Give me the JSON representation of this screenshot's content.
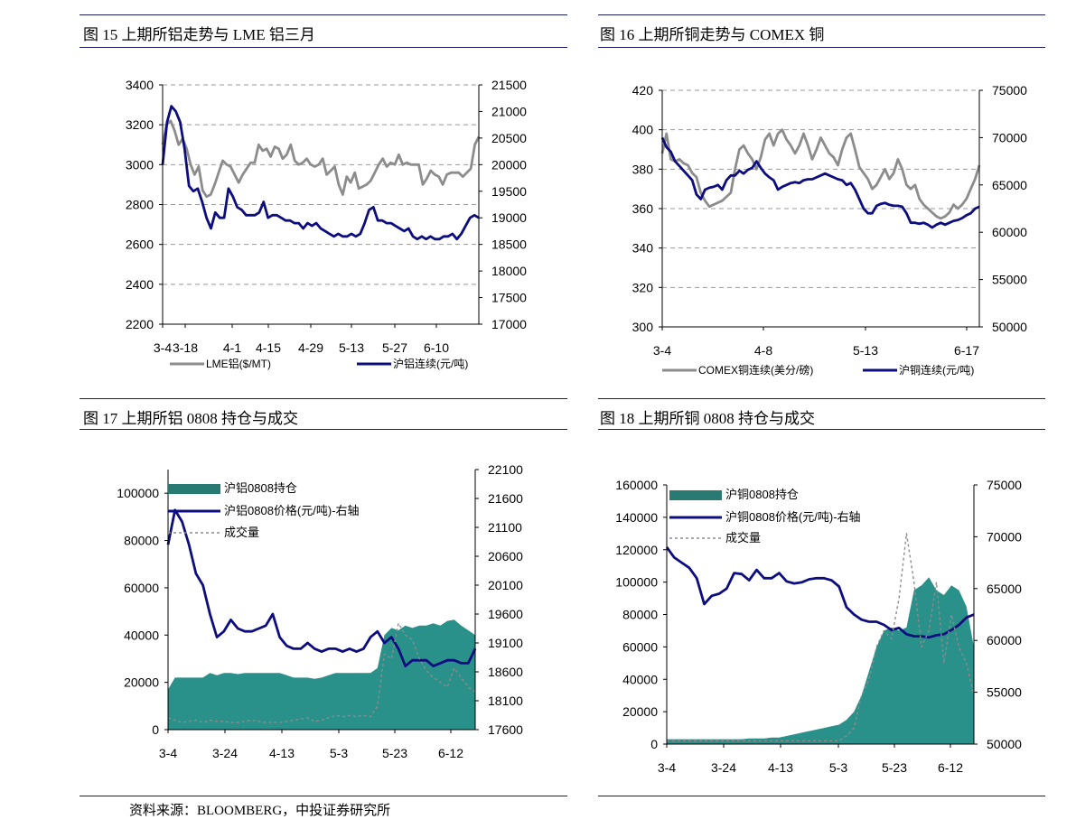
{
  "source_note": "资料来源：BLOOMBERG，中投证券研究所",
  "chart_data": [
    {
      "type": "line",
      "title": "图 15  上期所铝走势与 LME 铝三月",
      "x_ticks": [
        "3-4",
        "3-18",
        "4-1",
        "4-15",
        "4-29",
        "5-13",
        "5-27",
        "6-10"
      ],
      "y_left": {
        "ticks": [
          2200,
          2400,
          2600,
          2800,
          3000,
          3200,
          3400
        ],
        "lim": [
          2200,
          3400
        ]
      },
      "y_right": {
        "ticks": [
          17000,
          17500,
          18000,
          18500,
          19000,
          19500,
          20000,
          20500,
          21000,
          21500
        ],
        "lim": [
          17000,
          21500
        ]
      },
      "grid": true,
      "legend_position": "bottom",
      "series": [
        {
          "name": "LME铝($/MT)",
          "axis": "left",
          "color": "#8c8c8c",
          "values": [
            3100,
            3200,
            3220,
            3170,
            3100,
            3130,
            3080,
            3000,
            2950,
            2990,
            2870,
            2840,
            2850,
            2900,
            2960,
            3020,
            3000,
            2990,
            2950,
            2910,
            2950,
            2980,
            3010,
            3010,
            3100,
            3070,
            3080,
            3040,
            3090,
            3080,
            3030,
            3050,
            3100,
            3020,
            3000,
            3010,
            3030,
            3000,
            2990,
            3000,
            3030,
            2950,
            2970,
            2990,
            2900,
            2850,
            2940,
            2910,
            2960,
            2880,
            2890,
            2900,
            2920,
            2960,
            3000,
            3030,
            2990,
            3010,
            3000,
            3050,
            3000,
            3010,
            3000,
            3000,
            3000,
            2900,
            2930,
            2970,
            2950,
            2940,
            2900,
            2950,
            2960,
            2960,
            2960,
            2940,
            2960,
            2980,
            3100,
            3140
          ]
        },
        {
          "name": "沪铝连续(元/吨)",
          "axis": "right",
          "color": "#0d0d80",
          "values": [
            20000,
            20800,
            21100,
            21000,
            20800,
            20300,
            19600,
            19500,
            19550,
            19300,
            19000,
            18800,
            19100,
            19000,
            19000,
            19550,
            19400,
            19200,
            19150,
            19050,
            19050,
            19050,
            19100,
            19300,
            19000,
            19050,
            19050,
            19000,
            18950,
            18950,
            18900,
            18900,
            18800,
            18900,
            18850,
            18900,
            18800,
            18750,
            18700,
            18650,
            18700,
            18650,
            18650,
            18700,
            18650,
            18700,
            18900,
            19150,
            19200,
            18950,
            18950,
            18900,
            18900,
            18850,
            18800,
            18750,
            18800,
            18650,
            18600,
            18650,
            18600,
            18650,
            18600,
            18600,
            18650,
            18650,
            18700,
            18600,
            18700,
            18850,
            19000,
            19050,
            19000
          ]
        }
      ]
    },
    {
      "type": "line",
      "title": "图 16  上期所铜走势与 COMEX 铜",
      "x_ticks": [
        "3-4",
        "4-8",
        "5-13",
        "6-17"
      ],
      "y_left": {
        "ticks": [
          300,
          320,
          340,
          360,
          380,
          400,
          420
        ],
        "lim": [
          300,
          420
        ]
      },
      "y_right": {
        "ticks": [
          50000,
          55000,
          60000,
          65000,
          70000,
          75000
        ],
        "lim": [
          50000,
          75000
        ]
      },
      "grid": true,
      "legend_position": "bottom",
      "series": [
        {
          "name": "COMEX铜连续(美分/磅)",
          "axis": "left",
          "color": "#8c8c8c",
          "values": [
            388,
            398,
            385,
            384,
            385,
            383,
            382,
            378,
            376,
            368,
            364,
            361,
            362,
            363,
            364,
            366,
            368,
            380,
            390,
            392,
            388,
            385,
            380,
            386,
            395,
            398,
            392,
            398,
            400,
            395,
            392,
            388,
            392,
            398,
            392,
            385,
            390,
            396,
            392,
            388,
            386,
            382,
            390,
            396,
            398,
            390,
            381,
            378,
            375,
            370,
            372,
            376,
            380,
            375,
            378,
            385,
            380,
            372,
            370,
            372,
            365,
            362,
            360,
            358,
            356,
            355,
            356,
            358,
            362,
            360,
            362,
            365,
            370,
            375,
            382
          ]
        },
        {
          "name": "沪铜连续(元/吨)",
          "axis": "right",
          "color": "#0d0d80",
          "values": [
            70000,
            69000,
            68500,
            67500,
            67000,
            66500,
            66000,
            65500,
            64000,
            63500,
            64500,
            64700,
            64800,
            65000,
            64500,
            65500,
            66000,
            66000,
            66500,
            66200,
            66600,
            66800,
            67500,
            66800,
            66200,
            65800,
            65500,
            64500,
            64800,
            65000,
            65200,
            65300,
            65200,
            65500,
            65600,
            65600,
            65800,
            66000,
            66200,
            66000,
            65800,
            65600,
            65500,
            65000,
            65200,
            64500,
            63500,
            62500,
            62000,
            62000,
            62800,
            63000,
            63100,
            62900,
            62800,
            62800,
            62700,
            62000,
            61000,
            61000,
            60900,
            61000,
            60800,
            60500,
            60800,
            61000,
            60800,
            61000,
            61200,
            61300,
            61500,
            61800,
            62000,
            62500,
            62700
          ]
        }
      ]
    },
    {
      "type": "area",
      "title": "图 17 上期所铝 0808 持仓与成交",
      "x_ticks": [
        "3-4",
        "3-24",
        "4-13",
        "5-3",
        "5-23",
        "6-12"
      ],
      "y_left": {
        "ticks": [
          0,
          20000,
          40000,
          60000,
          80000,
          100000
        ],
        "lim": [
          0,
          110000
        ]
      },
      "y_right": {
        "ticks": [
          17600,
          18100,
          18600,
          19100,
          19600,
          20100,
          20600,
          21100,
          21600,
          22100
        ],
        "lim": [
          17600,
          22100
        ]
      },
      "grid": false,
      "legend_position": "top-left",
      "series": [
        {
          "name": "沪铝0808持仓",
          "kind": "area",
          "axis": "left",
          "color": "#1f8a84",
          "values": [
            17000,
            22000,
            22000,
            22000,
            22000,
            22000,
            24000,
            23000,
            24000,
            24000,
            23500,
            24000,
            24000,
            24000,
            24000,
            24000,
            24000,
            23000,
            22000,
            22000,
            22000,
            21500,
            22000,
            23000,
            24000,
            24000,
            24000,
            24000,
            24000,
            24000,
            26000,
            40000,
            43000,
            42000,
            44000,
            43000,
            44000,
            44000,
            45000,
            44000,
            46000,
            46500,
            44000,
            42000,
            40000
          ]
        },
        {
          "name": "沪铝0808价格(元/吨)-右轴",
          "kind": "line",
          "axis": "right",
          "color": "#0d0d80",
          "values": [
            20800,
            21400,
            21200,
            20800,
            20300,
            20100,
            19600,
            19200,
            19300,
            19500,
            19350,
            19300,
            19300,
            19350,
            19400,
            19600,
            19200,
            19050,
            19000,
            19000,
            19100,
            19000,
            18950,
            19000,
            19000,
            18950,
            19000,
            18950,
            19000,
            19200,
            19300,
            19100,
            19200,
            19000,
            18700,
            18800,
            18800,
            18800,
            18700,
            18750,
            18800,
            18800,
            18750,
            18750,
            19000
          ]
        },
        {
          "name": "成交量",
          "kind": "line",
          "axis": "left",
          "color": "#8c8c8c",
          "dash": true,
          "values": [
            5000,
            4000,
            3000,
            3500,
            4000,
            3000,
            4000,
            3500,
            3500,
            3000,
            3000,
            3500,
            4000,
            3500,
            3000,
            3000,
            3000,
            3500,
            4000,
            4500,
            5000,
            3500,
            4000,
            5000,
            6000,
            5500,
            6000,
            5500,
            6000,
            5500,
            10000,
            32000,
            30000,
            45000,
            40000,
            38000,
            30000,
            25000,
            22000,
            20000,
            18000,
            26000,
            22000,
            18000,
            16000
          ]
        }
      ]
    },
    {
      "type": "area",
      "title": "图 18  上期所铜 0808 持仓与成交",
      "x_ticks": [
        "3-4",
        "3-24",
        "4-13",
        "5-3",
        "5-23",
        "6-12"
      ],
      "y_left": {
        "ticks": [
          0,
          20000,
          40000,
          60000,
          80000,
          100000,
          120000,
          140000,
          160000
        ],
        "lim": [
          0,
          160000
        ]
      },
      "y_right": {
        "ticks": [
          50000,
          55000,
          60000,
          65000,
          70000,
          75000
        ],
        "lim": [
          50000,
          75000
        ]
      },
      "grid": false,
      "legend_position": "top-left",
      "series": [
        {
          "name": "沪铜0808持仓",
          "kind": "area",
          "axis": "left",
          "color": "#1f8a84",
          "values": [
            3000,
            3000,
            3000,
            3000,
            3000,
            3000,
            3000,
            3000,
            3000,
            3000,
            3000,
            3500,
            3500,
            3500,
            4000,
            4000,
            5000,
            6000,
            7000,
            8000,
            9000,
            10000,
            11000,
            12000,
            15000,
            20000,
            30000,
            45000,
            60000,
            70000,
            72000,
            70000,
            72000,
            95000,
            98000,
            103000,
            95000,
            92000,
            98000,
            95000,
            85000,
            60000
          ]
        },
        {
          "name": "沪铜0808价格(元/吨)-右轴",
          "kind": "line",
          "axis": "right",
          "color": "#0d0d80",
          "values": [
            69000,
            68000,
            67500,
            67000,
            66000,
            63500,
            64300,
            64500,
            65000,
            66500,
            66400,
            65800,
            66800,
            66000,
            66000,
            66500,
            65700,
            65500,
            65600,
            65900,
            66000,
            66000,
            65800,
            65200,
            63200,
            62500,
            62000,
            61800,
            61800,
            61500,
            61000,
            61200,
            60600,
            60400,
            60400,
            60300,
            60500,
            60600,
            61000,
            61500,
            62200,
            62500
          ]
        },
        {
          "name": "成交量",
          "kind": "line",
          "axis": "left",
          "color": "#8c8c8c",
          "dash": true,
          "values": [
            2000,
            2000,
            2000,
            2000,
            2000,
            2000,
            2000,
            2000,
            2000,
            2000,
            2000,
            2000,
            2000,
            2000,
            2000,
            2000,
            2000,
            2000,
            2000,
            2000,
            2000,
            2000,
            2000,
            2000,
            5000,
            10000,
            30000,
            40000,
            60000,
            70000,
            65000,
            90000,
            130000,
            100000,
            60000,
            70000,
            100000,
            50000,
            80000,
            60000,
            50000,
            30000
          ]
        }
      ]
    }
  ]
}
